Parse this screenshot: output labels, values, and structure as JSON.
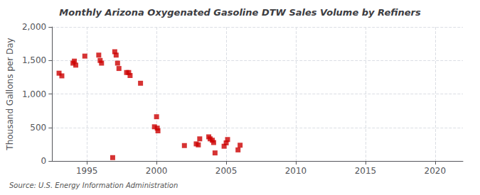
{
  "chart_data": {
    "type": "scatter",
    "title": "Monthly Arizona Oxygenated Gasoline DTW Sales Volume by Refiners",
    "ylabel": "Thousand Gallons per Day",
    "annotation": "Source: U.S. Energy Information Administration",
    "color": "#cc0000",
    "marker": "square",
    "grid": true,
    "xlim": [
      1992.5,
      2022
    ],
    "ylim": [
      0,
      2000
    ],
    "xticks": [
      1995,
      2000,
      2005,
      2010,
      2015,
      2020
    ],
    "yticks": [
      0,
      500,
      {
        "value": 1000,
        "label": "1,000"
      },
      {
        "value": 1500,
        "label": "1,500"
      },
      {
        "value": 2000,
        "label": "2,000"
      }
    ],
    "x": [
      1993.0,
      1993.2,
      1994.0,
      1994.1,
      1994.2,
      1994.85,
      1995.85,
      1995.95,
      1996.05,
      1996.85,
      1997.0,
      1997.1,
      1997.2,
      1997.3,
      1997.85,
      1998.0,
      1998.1,
      1998.85,
      1999.85,
      2000.0,
      2000.05,
      2000.1,
      2002.0,
      2002.85,
      2003.0,
      2003.1,
      2003.75,
      2003.85,
      2004.0,
      2004.1,
      2004.2,
      2004.85,
      2005.0,
      2005.1,
      2005.85,
      2006.0
    ],
    "values": [
      1310,
      1270,
      1460,
      1490,
      1430,
      1565,
      1580,
      1500,
      1460,
      50,
      1630,
      1580,
      1460,
      1380,
      1320,
      1320,
      1275,
      1160,
      510,
      660,
      490,
      450,
      230,
      255,
      240,
      330,
      360,
      330,
      310,
      275,
      120,
      220,
      270,
      320,
      165,
      235
    ]
  }
}
